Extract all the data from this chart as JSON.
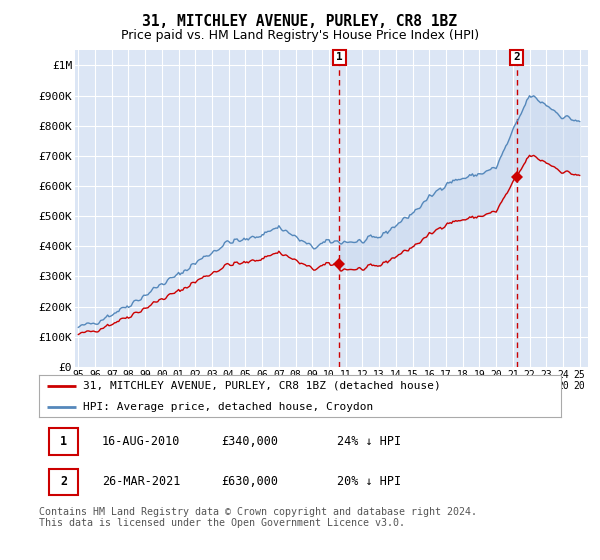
{
  "title": "31, MITCHLEY AVENUE, PURLEY, CR8 1BZ",
  "subtitle": "Price paid vs. HM Land Registry's House Price Index (HPI)",
  "ylabel_ticks": [
    "£0",
    "£100K",
    "£200K",
    "£300K",
    "£400K",
    "£500K",
    "£600K",
    "£700K",
    "£800K",
    "£900K",
    "£1M"
  ],
  "ytick_values": [
    0,
    100000,
    200000,
    300000,
    400000,
    500000,
    600000,
    700000,
    800000,
    900000,
    1000000
  ],
  "ylim": [
    0,
    1050000
  ],
  "background_color": "#ffffff",
  "plot_bg_color": "#dce6f5",
  "grid_color": "#ffffff",
  "hpi_color": "#5588bb",
  "hpi_fill_color": "#c8d8ee",
  "price_color": "#cc0000",
  "sale1_year": 2010.625,
  "sale1_price": 340000,
  "sale2_year": 2021.23,
  "sale2_price": 630000,
  "legend_line1": "31, MITCHLEY AVENUE, PURLEY, CR8 1BZ (detached house)",
  "legend_line2": "HPI: Average price, detached house, Croydon",
  "table_row1": [
    "1",
    "16-AUG-2010",
    "£340,000",
    "24% ↓ HPI"
  ],
  "table_row2": [
    "2",
    "26-MAR-2021",
    "£630,000",
    "20% ↓ HPI"
  ],
  "footnote": "Contains HM Land Registry data © Crown copyright and database right 2024.\nThis data is licensed under the Open Government Licence v3.0."
}
